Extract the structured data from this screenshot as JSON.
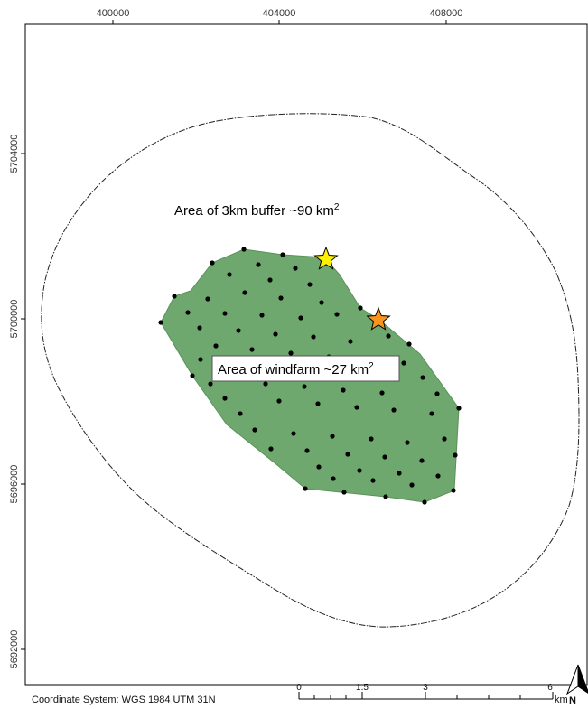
{
  "map": {
    "x_ticks": [
      "400000",
      "404000",
      "408000"
    ],
    "y_ticks": [
      "5704000",
      "5700000",
      "5696000",
      "5692000"
    ],
    "buffer_label": {
      "prefix": "Area of 3km buffer ~90 km",
      "sup": "2"
    },
    "windfarm_label": {
      "prefix": "Area of windfarm ~27 km",
      "sup": "2"
    },
    "coordinate_system": "Coordinate System: WGS 1984 UTM 31N",
    "scale_bar": {
      "labels": [
        "0",
        "1.5",
        "3",
        "6"
      ],
      "unit": "km"
    },
    "north_arrow": {
      "label": "N",
      "icon": "north-arrow-icon"
    },
    "markers": [
      {
        "name": "yellow-star-marker",
        "icon": "star-icon",
        "color": "#FFF200"
      },
      {
        "name": "orange-star-marker",
        "icon": "star-icon",
        "color": "#F7941D"
      }
    ],
    "colors": {
      "windfarm_fill": "#6FA86F",
      "windfarm_stroke": "#5A925A",
      "turbine": "#000000",
      "buffer_outline": "#222222"
    }
  }
}
